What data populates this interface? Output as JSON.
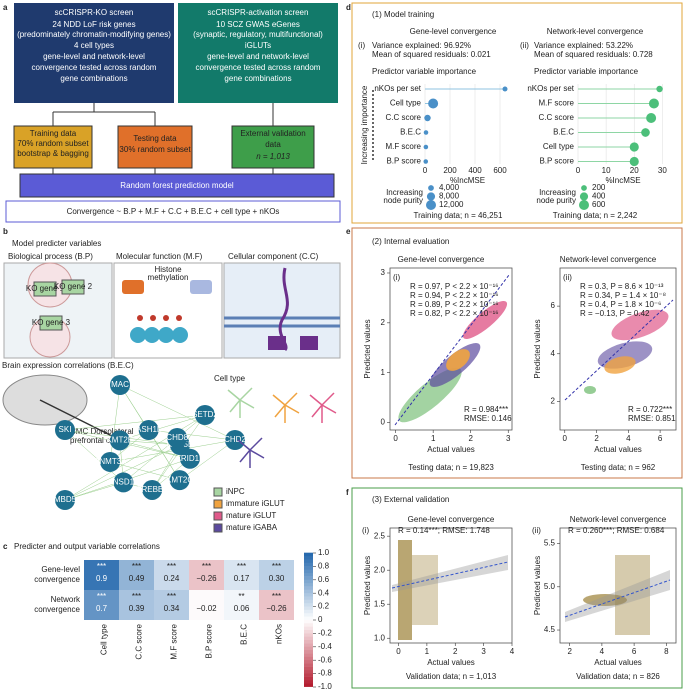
{
  "panel_a": {
    "label": "a",
    "ko_box": [
      "scCRISPR-KO screen",
      "24 NDD LoF risk genes",
      "(predominately chromatin-modifying genes)",
      "4 cell types",
      "gene-level and network-level",
      "convergence tested across random",
      "gene combinations"
    ],
    "act_box": [
      "scCRISPR-activation screen",
      "10 SCZ GWAS eGenes",
      "(synaptic, regulatory, multifunctional)",
      "iGLUTs",
      "gene-level and network-level",
      "convergence tested across random",
      "gene combinations"
    ],
    "training": [
      "Training data",
      "70% random subset",
      "bootstrap & bagging"
    ],
    "testing": [
      "Testing data",
      "30% random subset"
    ],
    "external": [
      "External validation",
      "data",
      "n = 1,013"
    ],
    "model": "Random forest prediction model",
    "formula": "Convergence ~ B.P + M.F + C.C + B.E.C + cell type + nKOs"
  },
  "panel_b": {
    "label": "b",
    "title": "Model predicter variables",
    "bp": "Biological process (B.P)",
    "mf": "Molecular function (M.F)",
    "cc": "Cellular component (C.C)",
    "ko": [
      "KO gene 1",
      "KO gene 2",
      "KO gene 3"
    ],
    "histone": [
      "Histone",
      "methylation"
    ],
    "bec": "Brain expression correlations (B.E.C)",
    "brain": [
      "CMC Dorsolateral",
      "prefrontal cortex"
    ],
    "nodes": [
      "MAC",
      "SKI",
      "SETD2",
      "CHD2",
      "MBD5",
      "KMT5B",
      "ASH1L",
      "CHD8",
      "ARID1B",
      "KMT2C",
      "CREBBP",
      "NSD1",
      "DNMT3A",
      "KMT2E"
    ],
    "cell_type": "Cell type",
    "legend": [
      {
        "name": "iNPC",
        "color": "#a8d5a2"
      },
      {
        "name": "immature iGLUT",
        "color": "#f0a340"
      },
      {
        "name": "mature iGLUT",
        "color": "#e05a8a"
      },
      {
        "name": "mature iGABA",
        "color": "#5b4a9e"
      }
    ]
  },
  "panel_c": {
    "label": "c",
    "title": "Predicter and output variable correlations",
    "columns": [
      "Cell type",
      "C.C score",
      "M.F score",
      "B.P score",
      "B.E.C",
      "nKOs"
    ],
    "rows": [
      {
        "name": [
          "Gene-level",
          "convergence"
        ],
        "values": [
          0.9,
          0.49,
          0.24,
          -0.26,
          0.17,
          0.3
        ],
        "value_labels": [
          "0.9",
          "0.49",
          "0.24",
          "−0.26",
          "0.17",
          "0.30"
        ],
        "stars": [
          "***",
          "***",
          "***",
          "***",
          "***",
          "***"
        ]
      },
      {
        "name": [
          "Network",
          "convergence"
        ],
        "values": [
          0.7,
          0.39,
          0.34,
          -0.02,
          0.06,
          -0.26
        ],
        "value_labels": [
          "0.7",
          "0.39",
          "0.34",
          "−0.02",
          "0.06",
          "−0.26"
        ],
        "stars": [
          "***",
          "***",
          "***",
          null,
          "**",
          "***"
        ]
      }
    ],
    "colorbar_lim": [
      -1,
      1
    ],
    "colorbar_ticks": [
      {
        "value": 1,
        "label": "1.0"
      },
      0.8,
      0.6,
      0.4,
      0.2,
      0,
      -0.2,
      -0.4,
      -0.6,
      -0.8,
      {
        "value": -1,
        "label": "-1.0"
      }
    ]
  },
  "panel_d": {
    "label": "d",
    "heading": "(1) Model training",
    "plots": [
      {
        "title": "Gene-level convergence",
        "roman": "(i)",
        "stats": [
          "Variance explained: 96.92%",
          "Mean of squared residuals: 0.021"
        ],
        "subtitle": "Predictor variable importance",
        "predictors": [
          "nKOs per set",
          "Cell type",
          "C.C score",
          "B.E.C",
          "M.F score",
          "B.P score"
        ],
        "values": [
          640,
          65,
          20,
          8,
          7,
          6
        ],
        "purity": [
          3000,
          12000,
          5000,
          2500,
          2500,
          2500
        ],
        "xlim": [
          0,
          680
        ],
        "xticks": [
          0,
          200,
          400,
          600
        ],
        "xlabel": "%IncMSE",
        "size_title": [
          "Increasing",
          "node purity"
        ],
        "size_legend": [
          {
            "value": 4000,
            "label": "4,000"
          },
          {
            "value": 8000,
            "label": "8,000"
          },
          {
            "value": 12000,
            "label": "12,000"
          }
        ],
        "footer": "Training data; n = 46,251"
      },
      {
        "title": "Network-level convergence",
        "roman": "(ii)",
        "stats": [
          "Variance explained: 53.22%",
          "Mean of squared residuals: 0.728"
        ],
        "subtitle": "Predictor variable importance",
        "predictors": [
          "nKOs per set",
          "M.F score",
          "C.C score",
          "B.E.C",
          "Cell type",
          "B.P score"
        ],
        "values": [
          29,
          27,
          26,
          24,
          20,
          20
        ],
        "purity": [
          250,
          600,
          600,
          450,
          500,
          500
        ],
        "xlim": [
          0,
          32
        ],
        "xticks": [
          0,
          10,
          20,
          30
        ],
        "xlabel": "%IncMSE",
        "size_title": [
          "Increasing",
          "node purity"
        ],
        "size_legend": [
          200,
          400,
          600
        ],
        "footer": "Training data; n = 2,242"
      }
    ],
    "ylabel": "Increasing importance"
  },
  "panel_e": {
    "label": "e",
    "heading": "(2) Internal evaluation",
    "plots": [
      {
        "title": "Gene-level convergence",
        "roman": "(i)",
        "annotations": [
          {
            "text": "R = 0.97, P < 2.2 × 10⁻¹⁶",
            "color": "#e05a8a"
          },
          {
            "text": "R = 0.94, P < 2.2 × 10⁻¹⁶",
            "color": "#f0a340"
          },
          {
            "text": "R = 0.89, P < 2.2 × 10⁻¹⁶",
            "color": "#5b4a9e"
          },
          {
            "text": "R = 0.82, P < 2.2 × 10⁻¹⁶",
            "color": "#7cc17a"
          }
        ],
        "summary": [
          "R = 0.984***",
          "RMSE: 0.146"
        ],
        "xlim": [
          -0.15,
          3.1
        ],
        "ylim": [
          -0.15,
          3.1
        ],
        "xticks": [
          0,
          1,
          2,
          3
        ],
        "yticks": [
          0,
          1,
          2,
          3
        ],
        "footer": "Testing data; n = 19,823"
      },
      {
        "title": "Network-level convergence",
        "roman": "(ii)",
        "annotations": [
          {
            "text": "R = 0.3, P = 8.6 × 10⁻¹³",
            "color": "#e05a8a"
          },
          {
            "text": "R = 0.34, P = 1.4 × 10⁻⁸",
            "color": "#f0a340"
          },
          {
            "text": "R = 0.4, P = 1.8 × 10⁻⁶",
            "color": "#5b4a9e"
          },
          {
            "text": "R = −0.13, P = 0.42",
            "color": "#7cc17a"
          }
        ],
        "summary": [
          "R = 0.722***",
          "RMSE: 0.851"
        ],
        "xlim": [
          -0.3,
          7
        ],
        "ylim": [
          0.8,
          7.6
        ],
        "xticks": [
          0,
          2,
          4,
          6
        ],
        "yticks": [
          2,
          4,
          6
        ],
        "footer": "Testing data; n = 962"
      }
    ],
    "xlabel": "Actual values",
    "ylabel": "Predicted values"
  },
  "panel_f": {
    "label": "f",
    "heading": "(3) External validation",
    "plots": [
      {
        "title": "Gene-level convergence",
        "roman": "(i)",
        "summary": "R = 0.14***; RMSE: 1.748",
        "xlim": [
          -0.3,
          4
        ],
        "ylim": [
          0.93,
          2.62
        ],
        "xticks": [
          0,
          1,
          2,
          3,
          4
        ],
        "yticks": [
          {
            "value": 1,
            "label": "1.0"
          },
          1.5,
          {
            "value": 2,
            "label": "2.0"
          },
          2.5
        ],
        "footer": "Validation data; n = 1,013"
      },
      {
        "title": "Network-level convergence",
        "roman": "(ii)",
        "summary": "R = 0.260***; RMSE: 0.684",
        "xlim": [
          1.4,
          8.6
        ],
        "ylim": [
          4.35,
          5.68
        ],
        "xticks": [
          2,
          4,
          6,
          8
        ],
        "yticks": [
          4.5,
          {
            "value": 5,
            "label": "5.0"
          },
          5.5
        ],
        "footer": "Validation data; n = 826"
      }
    ],
    "xlabel": "Actual values",
    "ylabel": "Predicted values"
  }
}
